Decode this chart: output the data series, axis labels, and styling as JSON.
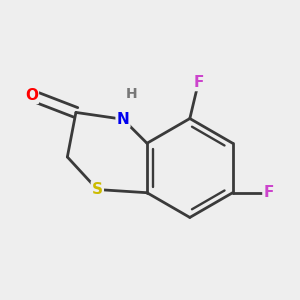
{
  "background_color": "#eeeeee",
  "bond_color": "#3a3a3a",
  "bond_width": 2.0,
  "atom_colors": {
    "O": "#ff0000",
    "N": "#0000ee",
    "S": "#ccbb00",
    "F": "#cc44cc",
    "H": "#777777"
  },
  "font_size": 11,
  "fig_size": [
    3.0,
    3.0
  ],
  "dpi": 100
}
